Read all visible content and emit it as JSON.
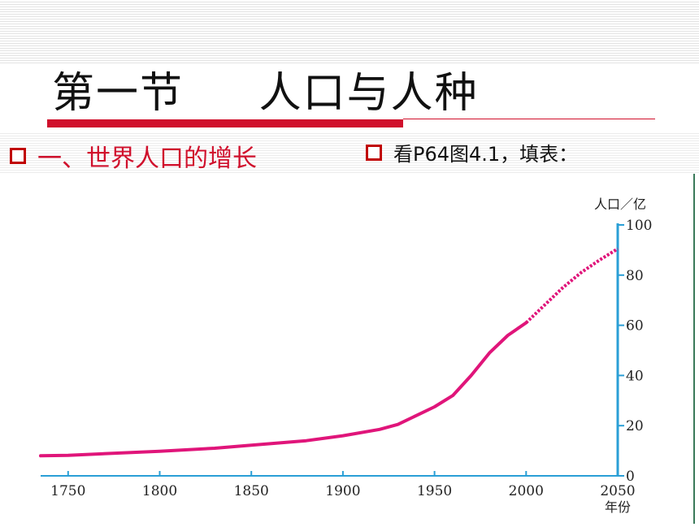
{
  "slide": {
    "title": "第一节     人口与人种",
    "bullet_left": "一、世界人口的增长",
    "bullet_right": "看P64图4.1，填表：",
    "accent_color": "#d0102c",
    "bullet_icon": "hollow-square"
  },
  "chart_data": {
    "type": "line",
    "xlabel": "年份",
    "ylabel": "人口／亿",
    "x_ticks": [
      1750,
      1800,
      1850,
      1900,
      1950,
      2000,
      2050
    ],
    "y_ticks": [
      0,
      20,
      40,
      60,
      80,
      100
    ],
    "xlim": [
      1735,
      2050
    ],
    "ylim": [
      0,
      100
    ],
    "y_axis_position": "right",
    "grid": false,
    "series": [
      {
        "style": "solid",
        "color": "#e0157a",
        "axis_color": "#2a9fd6",
        "x": [
          1735,
          1750,
          1800,
          1830,
          1850,
          1880,
          1900,
          1920,
          1930,
          1940,
          1950,
          1960,
          1970,
          1980,
          1990,
          2000
        ],
        "y": [
          8,
          8.2,
          9.8,
          11,
          12.2,
          14,
          16,
          18.5,
          20.5,
          24,
          27.5,
          32,
          40,
          49,
          56,
          61
        ]
      },
      {
        "style": "dotted",
        "color": "#e0157a",
        "x": [
          2000,
          2010,
          2020,
          2030,
          2040,
          2050
        ],
        "y": [
          61,
          68,
          75,
          81,
          86,
          90.5
        ]
      }
    ]
  }
}
